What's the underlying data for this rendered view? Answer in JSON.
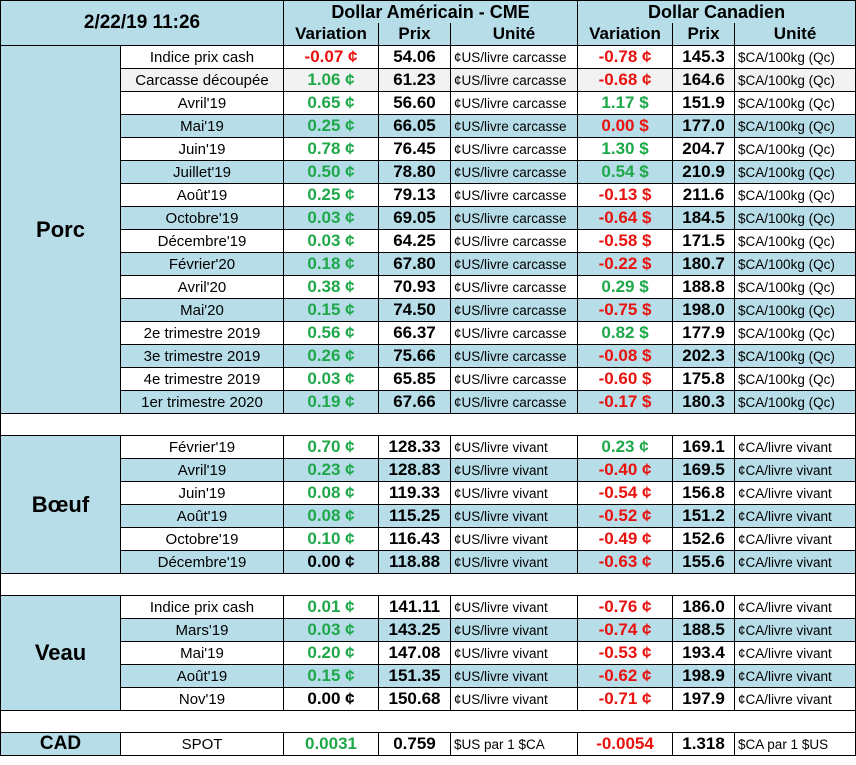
{
  "header": {
    "date": "2/22/19 11:26",
    "usd_title": "Dollar Américain - CME",
    "cad_title": "Dollar Canadien",
    "col_variation": "Variation",
    "col_prix": "Prix",
    "col_unite": "Unité"
  },
  "colors": {
    "positive": "#1fa84a",
    "negative": "#e8120f",
    "header_bg": "#b7dde8"
  },
  "sections": [
    {
      "name": "Porc",
      "rows": [
        {
          "label": "Indice prix cash",
          "usd_var": "-0.07 ¢",
          "usd_var_sign": "neg",
          "usd_prix": "54.06",
          "usd_unit": "¢US/livre carcasse",
          "cad_var": "-0.78 ¢",
          "cad_var_sign": "neg",
          "cad_prix": "145.3",
          "cad_unit": "$CA/100kg (Qc)"
        },
        {
          "label": "Carcasse découpée",
          "usd_var": "1.06 ¢",
          "usd_var_sign": "pos",
          "usd_prix": "61.23",
          "usd_unit": "¢US/livre carcasse",
          "cad_var": "-0.68 ¢",
          "cad_var_sign": "neg",
          "cad_prix": "164.6",
          "cad_unit": "$CA/100kg (Qc)"
        },
        {
          "label": "Avril'19",
          "usd_var": "0.65 ¢",
          "usd_var_sign": "pos",
          "usd_prix": "56.60",
          "usd_unit": "¢US/livre carcasse",
          "cad_var": "1.17 $",
          "cad_var_sign": "pos",
          "cad_prix": "151.9",
          "cad_unit": "$CA/100kg (Qc)"
        },
        {
          "label": "Mai'19",
          "usd_var": "0.25 ¢",
          "usd_var_sign": "pos",
          "usd_prix": "66.05",
          "usd_unit": "¢US/livre carcasse",
          "cad_var": "0.00 $",
          "cad_var_sign": "neg",
          "cad_prix": "177.0",
          "cad_unit": "$CA/100kg (Qc)"
        },
        {
          "label": "Juin'19",
          "usd_var": "0.78 ¢",
          "usd_var_sign": "pos",
          "usd_prix": "76.45",
          "usd_unit": "¢US/livre carcasse",
          "cad_var": "1.30 $",
          "cad_var_sign": "pos",
          "cad_prix": "204.7",
          "cad_unit": "$CA/100kg (Qc)"
        },
        {
          "label": "Juillet'19",
          "usd_var": "0.50 ¢",
          "usd_var_sign": "pos",
          "usd_prix": "78.80",
          "usd_unit": "¢US/livre carcasse",
          "cad_var": "0.54 $",
          "cad_var_sign": "pos",
          "cad_prix": "210.9",
          "cad_unit": "$CA/100kg (Qc)"
        },
        {
          "label": "Août'19",
          "usd_var": "0.25 ¢",
          "usd_var_sign": "pos",
          "usd_prix": "79.13",
          "usd_unit": "¢US/livre carcasse",
          "cad_var": "-0.13 $",
          "cad_var_sign": "neg",
          "cad_prix": "211.6",
          "cad_unit": "$CA/100kg (Qc)"
        },
        {
          "label": "Octobre'19",
          "usd_var": "0.03 ¢",
          "usd_var_sign": "pos",
          "usd_prix": "69.05",
          "usd_unit": "¢US/livre carcasse",
          "cad_var": "-0.64 $",
          "cad_var_sign": "neg",
          "cad_prix": "184.5",
          "cad_unit": "$CA/100kg (Qc)"
        },
        {
          "label": "Décembre'19",
          "usd_var": "0.03 ¢",
          "usd_var_sign": "pos",
          "usd_prix": "64.25",
          "usd_unit": "¢US/livre carcasse",
          "cad_var": "-0.58 $",
          "cad_var_sign": "neg",
          "cad_prix": "171.5",
          "cad_unit": "$CA/100kg (Qc)"
        },
        {
          "label": "Février'20",
          "usd_var": "0.18 ¢",
          "usd_var_sign": "pos",
          "usd_prix": "67.80",
          "usd_unit": "¢US/livre carcasse",
          "cad_var": "-0.22 $",
          "cad_var_sign": "neg",
          "cad_prix": "180.7",
          "cad_unit": "$CA/100kg (Qc)"
        },
        {
          "label": "Avril'20",
          "usd_var": "0.38 ¢",
          "usd_var_sign": "pos",
          "usd_prix": "70.93",
          "usd_unit": "¢US/livre carcasse",
          "cad_var": "0.29 $",
          "cad_var_sign": "pos",
          "cad_prix": "188.8",
          "cad_unit": "$CA/100kg (Qc)"
        },
        {
          "label": "Mai'20",
          "usd_var": "0.15 ¢",
          "usd_var_sign": "pos",
          "usd_prix": "74.50",
          "usd_unit": "¢US/livre carcasse",
          "cad_var": "-0.75 $",
          "cad_var_sign": "neg",
          "cad_prix": "198.0",
          "cad_unit": "$CA/100kg (Qc)"
        },
        {
          "label": "2e trimestre 2019",
          "usd_var": "0.56 ¢",
          "usd_var_sign": "pos",
          "usd_prix": "66.37",
          "usd_unit": "¢US/livre carcasse",
          "cad_var": "0.82 $",
          "cad_var_sign": "pos",
          "cad_prix": "177.9",
          "cad_unit": "$CA/100kg (Qc)"
        },
        {
          "label": "3e trimestre 2019",
          "usd_var": "0.26 ¢",
          "usd_var_sign": "pos",
          "usd_prix": "75.66",
          "usd_unit": "¢US/livre carcasse",
          "cad_var": "-0.08 $",
          "cad_var_sign": "neg",
          "cad_prix": "202.3",
          "cad_unit": "$CA/100kg (Qc)"
        },
        {
          "label": "4e trimestre 2019",
          "usd_var": "0.03 ¢",
          "usd_var_sign": "pos",
          "usd_prix": "65.85",
          "usd_unit": "¢US/livre carcasse",
          "cad_var": "-0.60 $",
          "cad_var_sign": "neg",
          "cad_prix": "175.8",
          "cad_unit": "$CA/100kg (Qc)"
        },
        {
          "label": "1er trimestre 2020",
          "usd_var": "0.19 ¢",
          "usd_var_sign": "pos",
          "usd_prix": "67.66",
          "usd_unit": "¢US/livre carcasse",
          "cad_var": "-0.17 $",
          "cad_var_sign": "neg",
          "cad_prix": "180.3",
          "cad_unit": "$CA/100kg (Qc)"
        }
      ]
    },
    {
      "name": "Bœuf",
      "rows": [
        {
          "label": "Février'19",
          "usd_var": "0.70 ¢",
          "usd_var_sign": "pos",
          "usd_prix": "128.33",
          "usd_unit": "¢US/livre vivant",
          "cad_var": "0.23 ¢",
          "cad_var_sign": "pos",
          "cad_prix": "169.1",
          "cad_unit": "¢CA/livre vivant"
        },
        {
          "label": "Avril'19",
          "usd_var": "0.23 ¢",
          "usd_var_sign": "pos",
          "usd_prix": "128.83",
          "usd_unit": "¢US/livre vivant",
          "cad_var": "-0.40 ¢",
          "cad_var_sign": "neg",
          "cad_prix": "169.5",
          "cad_unit": "¢CA/livre vivant"
        },
        {
          "label": "Juin'19",
          "usd_var": "0.08 ¢",
          "usd_var_sign": "pos",
          "usd_prix": "119.33",
          "usd_unit": "¢US/livre vivant",
          "cad_var": "-0.54 ¢",
          "cad_var_sign": "neg",
          "cad_prix": "156.8",
          "cad_unit": "¢CA/livre vivant"
        },
        {
          "label": "Août'19",
          "usd_var": "0.08 ¢",
          "usd_var_sign": "pos",
          "usd_prix": "115.25",
          "usd_unit": "¢US/livre vivant",
          "cad_var": "-0.52 ¢",
          "cad_var_sign": "neg",
          "cad_prix": "151.2",
          "cad_unit": "¢CA/livre vivant"
        },
        {
          "label": "Octobre'19",
          "usd_var": "0.10 ¢",
          "usd_var_sign": "pos",
          "usd_prix": "116.43",
          "usd_unit": "¢US/livre vivant",
          "cad_var": "-0.49 ¢",
          "cad_var_sign": "neg",
          "cad_prix": "152.6",
          "cad_unit": "¢CA/livre vivant"
        },
        {
          "label": "Décembre'19",
          "usd_var": "0.00 ¢",
          "usd_var_sign": "neu",
          "usd_prix": "118.88",
          "usd_unit": "¢US/livre vivant",
          "cad_var": "-0.63 ¢",
          "cad_var_sign": "neg",
          "cad_prix": "155.6",
          "cad_unit": "¢CA/livre vivant"
        }
      ]
    },
    {
      "name": "Veau",
      "rows": [
        {
          "label": "Indice prix cash",
          "usd_var": "0.01 ¢",
          "usd_var_sign": "pos",
          "usd_prix": "141.11",
          "usd_unit": "¢US/livre vivant",
          "cad_var": "-0.76 ¢",
          "cad_var_sign": "neg",
          "cad_prix": "186.0",
          "cad_unit": "¢CA/livre vivant"
        },
        {
          "label": "Mars'19",
          "usd_var": "0.03 ¢",
          "usd_var_sign": "pos",
          "usd_prix": "143.25",
          "usd_unit": "¢US/livre vivant",
          "cad_var": "-0.74 ¢",
          "cad_var_sign": "neg",
          "cad_prix": "188.5",
          "cad_unit": "¢CA/livre vivant"
        },
        {
          "label": "Mai'19",
          "usd_var": "0.20 ¢",
          "usd_var_sign": "pos",
          "usd_prix": "147.08",
          "usd_unit": "¢US/livre vivant",
          "cad_var": "-0.53 ¢",
          "cad_var_sign": "neg",
          "cad_prix": "193.4",
          "cad_unit": "¢CA/livre vivant"
        },
        {
          "label": "Août'19",
          "usd_var": "0.15 ¢",
          "usd_var_sign": "pos",
          "usd_prix": "151.35",
          "usd_unit": "¢US/livre vivant",
          "cad_var": "-0.62 ¢",
          "cad_var_sign": "neg",
          "cad_prix": "198.9",
          "cad_unit": "¢CA/livre vivant"
        },
        {
          "label": "Nov'19",
          "usd_var": "0.00 ¢",
          "usd_var_sign": "neu",
          "usd_prix": "150.68",
          "usd_unit": "¢US/livre vivant",
          "cad_var": "-0.71 ¢",
          "cad_var_sign": "neg",
          "cad_prix": "197.9",
          "cad_unit": "¢CA/livre vivant"
        }
      ]
    }
  ],
  "cad": {
    "name": "CAD",
    "label": "SPOT",
    "usd_var": "0.0031",
    "usd_var_sign": "pos",
    "usd_prix": "0.759",
    "usd_unit": "$US par 1 $CA",
    "cad_var": "-0.0054",
    "cad_var_sign": "neg",
    "cad_prix": "1.318",
    "cad_unit": "$CA par 1 $US"
  }
}
